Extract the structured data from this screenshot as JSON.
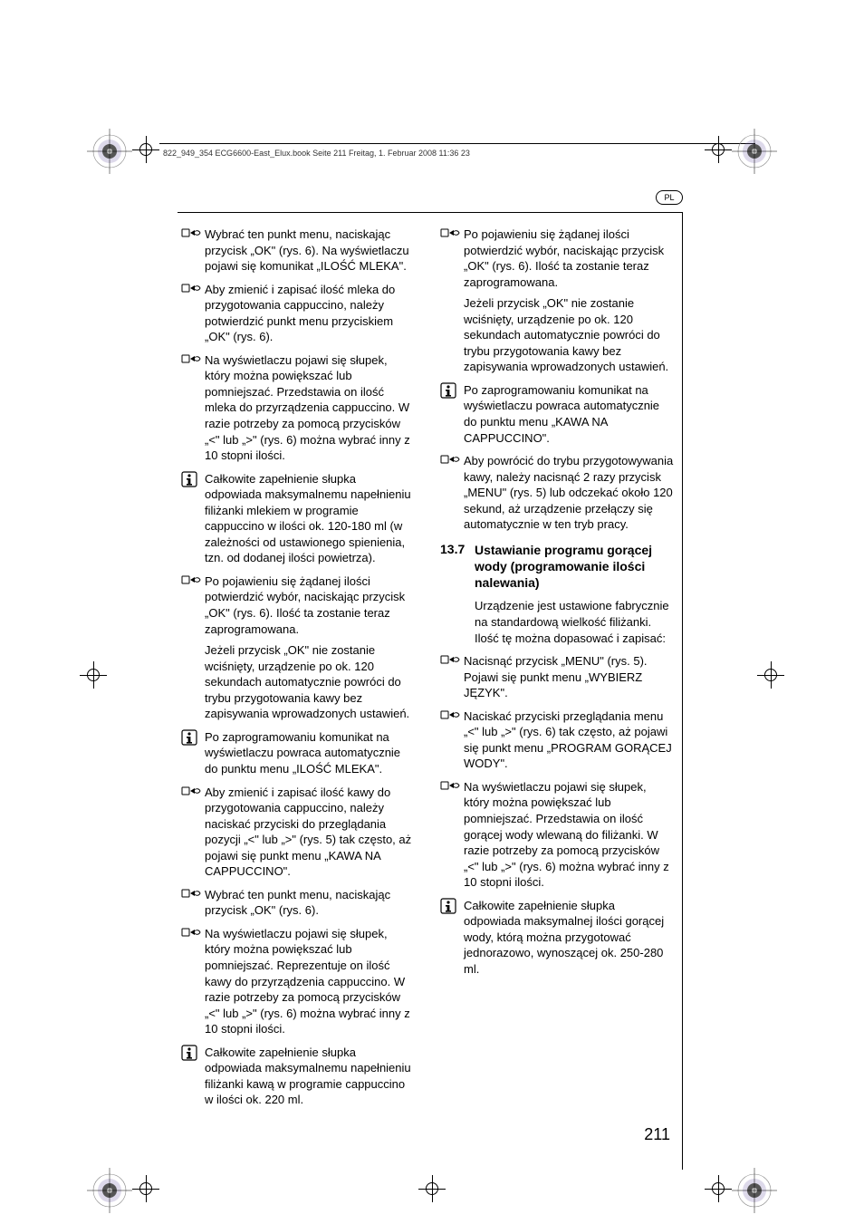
{
  "header": "822_949_354 ECG6600-East_Elux.book  Seite 211  Freitag, 1. Februar 2008  11:36 23",
  "lang": "PL",
  "page_number": "211",
  "colors": {
    "text": "#000000",
    "bg": "#ffffff"
  },
  "left_column": [
    {
      "type": "hand",
      "paras": [
        "Wybrać ten punkt menu, naciskając przycisk „OK\" (rys. 6). Na wyświetlaczu pojawi się komunikat „ILOŚĆ MLEKA\"."
      ]
    },
    {
      "type": "hand",
      "paras": [
        "Aby zmienić i zapisać ilość mleka do przygotowania cappuccino, należy potwierdzić punkt menu przyciskiem „OK\" (rys. 6)."
      ]
    },
    {
      "type": "hand",
      "paras": [
        "Na wyświetlaczu pojawi się słupek, który można powiększać lub pomniejszać. Przedstawia on ilość mleka do przyrządzenia cappuccino. W razie potrzeby za pomocą przycisków „<\" lub „>\" (rys. 6) można wybrać inny z 10 stopni ilości."
      ]
    },
    {
      "type": "info",
      "paras": [
        "Całkowite zapełnienie słupka odpowiada maksymalnemu napełnieniu filiżanki mlekiem w programie cappuccino w ilości ok. 120-180 ml (w zależności od ustawionego spienienia, tzn. od dodanej ilości powietrza)."
      ]
    },
    {
      "type": "hand",
      "allow_break": true,
      "paras": [
        "Po pojawieniu się żądanej ilości potwierdzić wybór, naciskając przycisk „OK\" (rys. 6). Ilość ta zostanie teraz zaprogramowana.",
        "Jeżeli przycisk „OK\" nie zostanie wciśnięty, urządzenie po ok. 120 sekundach automatycznie powróci do trybu przygotowania kawy bez zapisywania wprowadzonych ustawień."
      ]
    },
    {
      "type": "info",
      "paras": [
        "Po zaprogramowaniu komunikat na wyświetlaczu powraca automatycznie do punktu menu „ILOŚĆ MLEKA\"."
      ]
    },
    {
      "type": "hand",
      "paras": [
        "Aby zmienić i zapisać ilość kawy do przygotowania cappuccino, należy naciskać przyciski do przeglądania pozycji „<\" lub „>\" (rys. 5) tak często, aż pojawi się punkt menu „KAWA NA CAPPUCCINO\"."
      ]
    },
    {
      "type": "hand",
      "paras": [
        "Wybrać ten punkt menu, naciskając przycisk „OK\" (rys. 6)."
      ]
    },
    {
      "type": "hand",
      "paras": [
        "Na wyświetlaczu pojawi się słupek, który można powiększać lub pomniejszać. Reprezentuje on ilość kawy do przyrządzenia cappuccino. W razie potrzeby za pomocą przycisków „<\" lub „>\" (rys. 6) można wybrać inny z 10 stopni ilości."
      ]
    }
  ],
  "right_column": [
    {
      "type": "info",
      "paras": [
        "Całkowite zapełnienie słupka odpowiada maksymalnemu napełnieniu filiżanki kawą w programie cappuccino w ilości ok. 220 ml."
      ]
    },
    {
      "type": "hand",
      "allow_break": true,
      "paras": [
        "Po pojawieniu się żądanej ilości potwierdzić wybór, naciskając przycisk „OK\" (rys. 6). Ilość ta zostanie teraz zaprogramowana.",
        "Jeżeli przycisk „OK\" nie zostanie wciśnięty, urządzenie po ok. 120 sekundach automatycznie powróci do trybu przygotowania kawy bez zapisywania wprowadzonych ustawień."
      ]
    },
    {
      "type": "info",
      "paras": [
        "Po zaprogramowaniu komunikat na wyświetlaczu powraca automatycznie do punktu menu „KAWA NA CAPPUCCINO\"."
      ]
    },
    {
      "type": "hand",
      "paras": [
        "Aby powrócić do trybu przygotowywania kawy, należy nacisnąć 2 razy przycisk „MENU\" (rys. 5) lub odczekać około 120 sekund, aż urządzenie przełączy się automatycznie w ten tryb pracy."
      ]
    }
  ],
  "section": {
    "number": "13.7",
    "title": "Ustawianie programu gorącej wody (programowanie ilości nalewania)",
    "intro": [
      "Urządzenie jest ustawione fabrycznie na standardową wielkość filiżanki. Ilość tę można dopasować i zapisać:"
    ],
    "items": [
      {
        "type": "hand",
        "paras": [
          "Nacisnąć przycisk „MENU\" (rys. 5). Pojawi się punkt menu „WYBIERZ JĘZYK\"."
        ]
      },
      {
        "type": "hand",
        "paras": [
          "Naciskać przyciski przeglądania menu „<\" lub „>\" (rys. 6) tak często, aż pojawi się punkt menu „PROGRAM GORĄCEJ WODY\"."
        ]
      },
      {
        "type": "hand",
        "paras": [
          "Na wyświetlaczu pojawi się słupek, który można powiększać lub pomniejszać. Przedstawia on ilość gorącej wody wlewaną do filiżanki. W razie potrzeby za pomocą przycisków „<\" lub „>\" (rys. 6) można wybrać inny z 10 stopni ilości."
        ]
      },
      {
        "type": "info",
        "paras": [
          "Całkowite zapełnienie słupka odpowiada maksymalnej ilości gorącej wody, którą można przygotować jednorazowo, wynoszącej ok. 250-280 ml."
        ]
      }
    ]
  }
}
